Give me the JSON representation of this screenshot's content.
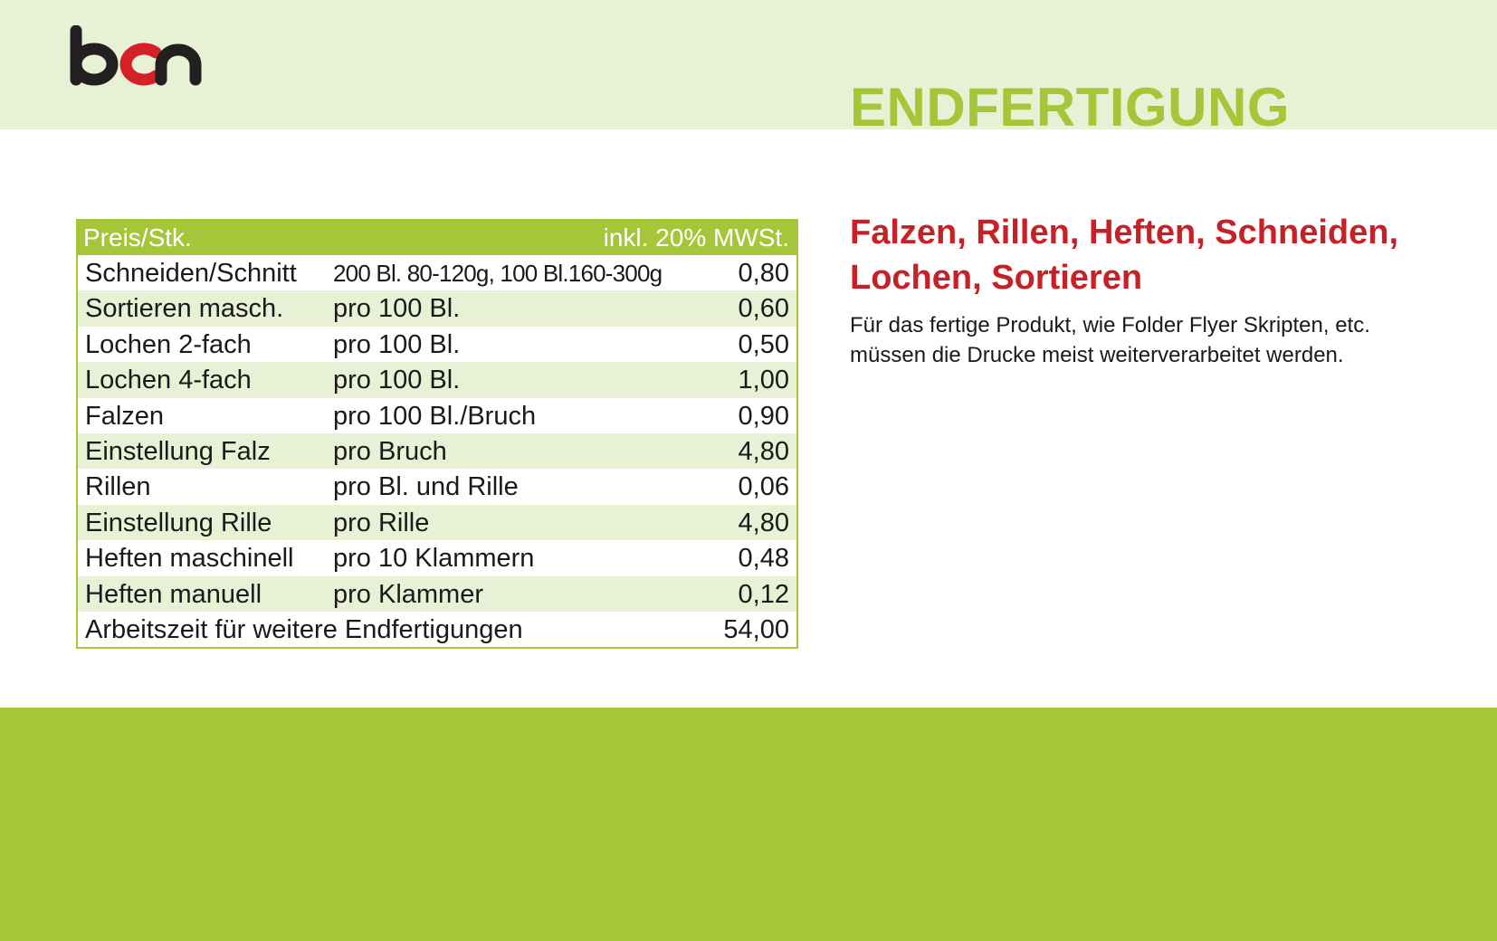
{
  "brand": {
    "logo_text": "bcn",
    "colors": {
      "dark": "#231f20",
      "red": "#d42027",
      "green": "#a6c63a",
      "light_green": "#e8f1d6"
    }
  },
  "page_title": "ENDFERTIGUNG",
  "price_table": {
    "header_left": "Preis/Stk.",
    "header_right": "inkl. 20% MWSt.",
    "rows": [
      {
        "item": "Schneiden/Schnitt",
        "unit": "200 Bl. 80-120g, 100 Bl.160-300g",
        "price": "0,80"
      },
      {
        "item": "Sortieren masch.",
        "unit": "pro 100 Bl.",
        "price": "0,60"
      },
      {
        "item": "Lochen 2-fach",
        "unit": "pro 100 Bl.",
        "price": "0,50"
      },
      {
        "item": "Lochen 4-fach",
        "unit": "pro 100 Bl.",
        "price": "1,00"
      },
      {
        "item": "Falzen",
        "unit": "pro 100 Bl./Bruch",
        "price": "0,90"
      },
      {
        "item": "Einstellung Falz",
        "unit": "pro Bruch",
        "price": "4,80"
      },
      {
        "item": "Rillen",
        "unit": "pro Bl. und Rille",
        "price": "0,06"
      },
      {
        "item": "Einstellung Rille",
        "unit": "pro Rille",
        "price": "4,80"
      },
      {
        "item": "Heften maschinell",
        "unit": "pro 10 Klammern",
        "price": "0,48"
      },
      {
        "item": "Heften manuell",
        "unit": "pro Klammer",
        "price": "0,12"
      },
      {
        "item": "Arbeitszeit für weitere Endfertigungen",
        "unit": "",
        "price": "54,00"
      }
    ]
  },
  "side": {
    "heading_line1": "Falzen, Rillen, Heften, Schneiden,",
    "heading_line2": "Lochen, Sortieren",
    "text_line1": "Für das fertige Produkt, wie Folder Flyer  Skripten, etc.",
    "text_line2": "müssen die Drucke meist weiterverarbeitet werden."
  }
}
